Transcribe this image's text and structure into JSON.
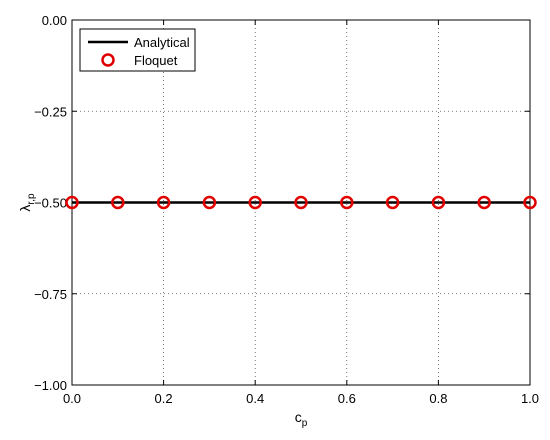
{
  "chart_data": {
    "type": "line",
    "title": "",
    "xlabel": "c",
    "xlabel_sub": "p",
    "ylabel": "λ",
    "ylabel_sub": "r,p",
    "xlim": [
      0.0,
      1.0
    ],
    "ylim": [
      -1.0,
      0.0
    ],
    "x_ticks": [
      0.0,
      0.2,
      0.4,
      0.6,
      0.8,
      1.0
    ],
    "x_tick_labels": [
      "0.0",
      "0.2",
      "0.4",
      "0.6",
      "0.8",
      "1.0"
    ],
    "y_ticks": [
      0.0,
      -0.25,
      -0.5,
      -0.75,
      -1.0
    ],
    "y_tick_labels": [
      "0.00",
      "−0.25",
      "−0.50",
      "−0.75",
      "−1.00"
    ],
    "grid": true,
    "legend_position": "top-left",
    "series": [
      {
        "name": "Analytical",
        "style": "line",
        "color": "#000000",
        "x": [
          0.0,
          1.0
        ],
        "y": [
          -0.5,
          -0.5
        ]
      },
      {
        "name": "Floquet",
        "style": "marker-circle",
        "color": "#e00000",
        "x": [
          0.0,
          0.1,
          0.2,
          0.3,
          0.4,
          0.5,
          0.6,
          0.7,
          0.8,
          0.9,
          1.0
        ],
        "y": [
          -0.5,
          -0.5,
          -0.5,
          -0.5,
          -0.5,
          -0.5,
          -0.5,
          -0.5,
          -0.5,
          -0.5,
          -0.5
        ]
      }
    ]
  }
}
